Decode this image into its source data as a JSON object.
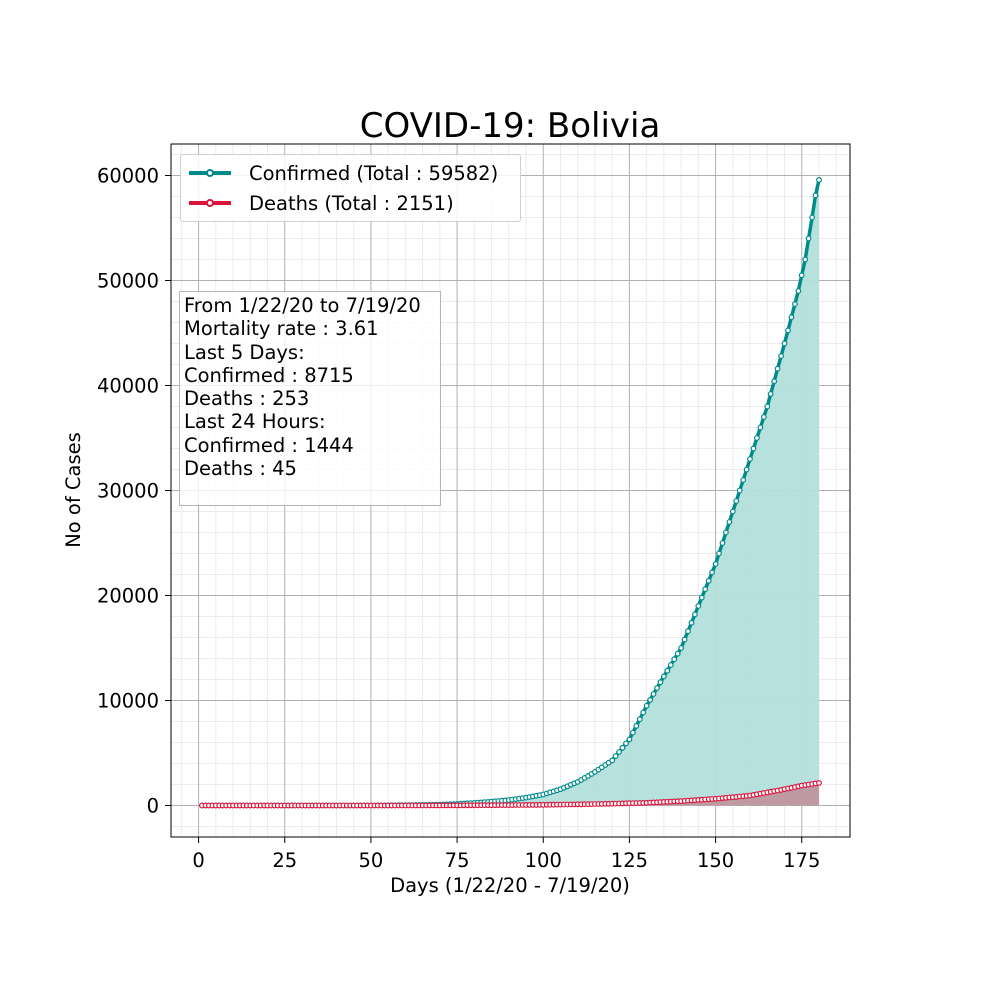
{
  "chart_data": {
    "type": "line",
    "title": "COVID-19: Bolivia",
    "xlabel": "Days (1/22/20 - 7/19/20)",
    "ylabel": "No of Cases",
    "xlim": [
      -8,
      189
    ],
    "ylim": [
      -3000,
      63000
    ],
    "xticks": [
      0,
      25,
      50,
      75,
      100,
      125,
      150,
      175
    ],
    "yticks": [
      0,
      10000,
      20000,
      30000,
      40000,
      50000,
      60000
    ],
    "grid": true,
    "legend_position": "top-left",
    "series": [
      {
        "name": "Confirmed (Total : 59582)",
        "color": "#008b8b",
        "fill": "#b2dfdb",
        "points": [
          [
            1,
            0
          ],
          [
            50,
            0
          ],
          [
            60,
            30
          ],
          [
            70,
            80
          ],
          [
            75,
            150
          ],
          [
            80,
            250
          ],
          [
            85,
            370
          ],
          [
            90,
            520
          ],
          [
            95,
            750
          ],
          [
            100,
            1050
          ],
          [
            105,
            1550
          ],
          [
            110,
            2250
          ],
          [
            115,
            3200
          ],
          [
            120,
            4300
          ],
          [
            125,
            6300
          ],
          [
            130,
            9500
          ],
          [
            135,
            12300
          ],
          [
            140,
            15000
          ],
          [
            145,
            19000
          ],
          [
            150,
            23000
          ],
          [
            155,
            28000
          ],
          [
            160,
            33000
          ],
          [
            165,
            38000
          ],
          [
            170,
            44000
          ],
          [
            172,
            46500
          ],
          [
            174,
            49000
          ],
          [
            176,
            52000
          ],
          [
            178,
            56000
          ],
          [
            179,
            58100
          ],
          [
            180,
            59582
          ]
        ]
      },
      {
        "name": "Deaths (Total : 2151)",
        "color": "#dc143c",
        "fill": "#c0929c",
        "points": [
          [
            1,
            0
          ],
          [
            70,
            5
          ],
          [
            80,
            20
          ],
          [
            90,
            40
          ],
          [
            100,
            65
          ],
          [
            110,
            110
          ],
          [
            120,
            170
          ],
          [
            130,
            260
          ],
          [
            140,
            420
          ],
          [
            150,
            640
          ],
          [
            155,
            790
          ],
          [
            160,
            950
          ],
          [
            165,
            1250
          ],
          [
            170,
            1550
          ],
          [
            175,
            1898
          ],
          [
            180,
            2151
          ]
        ]
      }
    ],
    "annotation_lines": [
      "From 1/22/20 to 7/19/20",
      "Mortality rate : 3.61",
      "Last 5 Days:",
      "Confirmed : 8715",
      "Deaths : 253",
      "Last 24 Hours:",
      "Confirmed : 1444",
      "Deaths : 45"
    ]
  }
}
